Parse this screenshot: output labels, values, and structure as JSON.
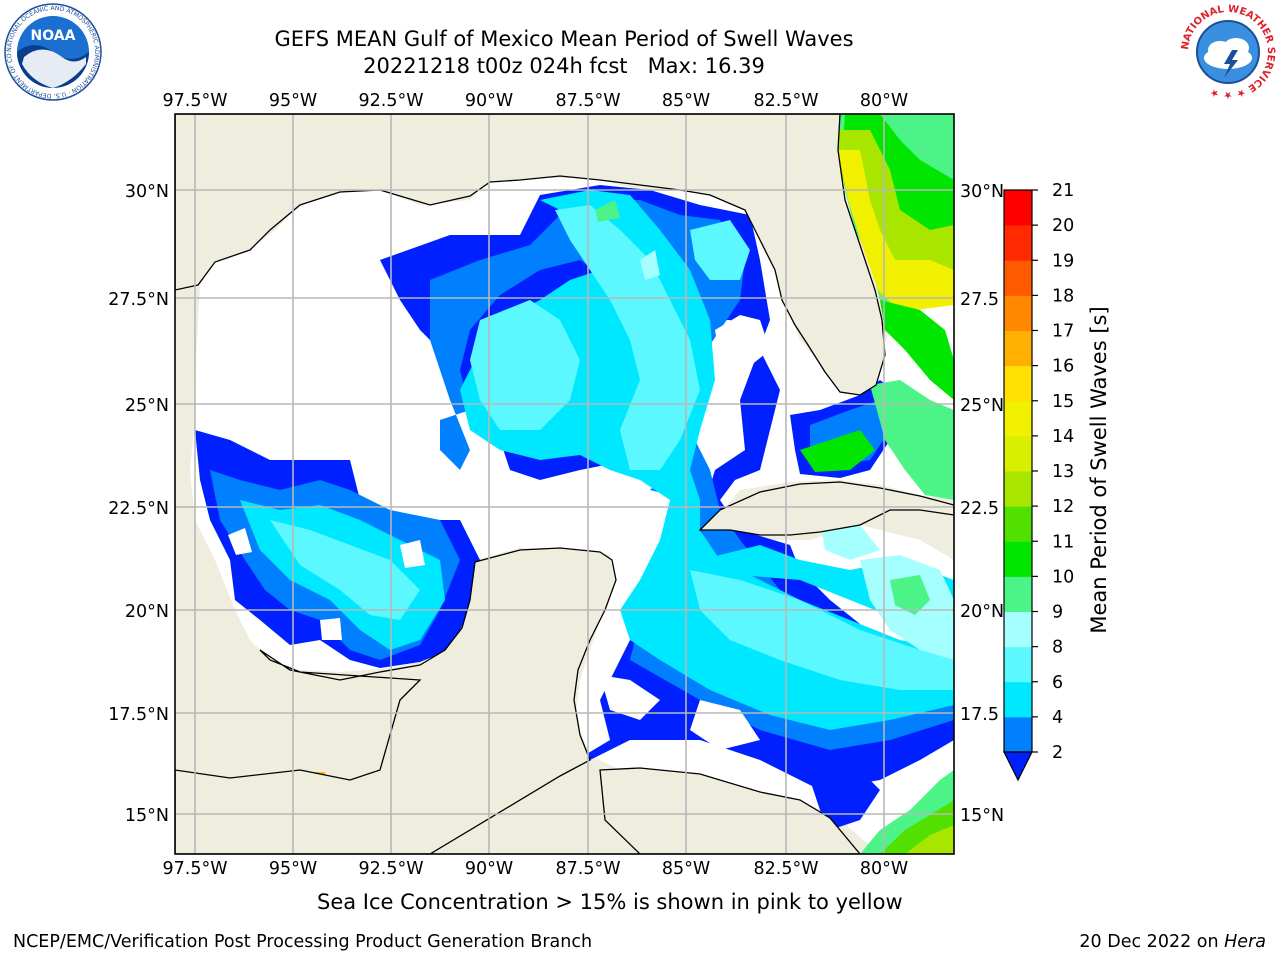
{
  "title": {
    "line1": "GEFS MEAN Gulf of Mexico Mean Period of Swell Waves",
    "line2": "20221218 t00z 024h fcst   Max: 16.39"
  },
  "map": {
    "lon_labels": [
      "97.5°W",
      "95°W",
      "92.5°W",
      "90°W",
      "87.5°W",
      "85°W",
      "82.5°W",
      "80°W"
    ],
    "lat_labels_left": [
      "30°N",
      "27.5°N",
      "25°N",
      "22.5°N",
      "20°N",
      "17.5°N",
      "15°N"
    ],
    "lat_labels_right": [
      "30°N",
      "27.5",
      "25°N",
      "22.5",
      "20°N",
      "17.5",
      "15°N"
    ],
    "colors": {
      "land": "#efedde",
      "grid": "#b8b8b8",
      "coast": "#000000"
    }
  },
  "colorbar": {
    "label": "Mean Period of Swell Waves [s]",
    "ticks": [
      "2",
      "4",
      "6",
      "8",
      "9",
      "10",
      "11",
      "12",
      "13",
      "14",
      "15",
      "16",
      "17",
      "18",
      "19",
      "20",
      "21"
    ],
    "colors": [
      "#0020ff",
      "#0080ff",
      "#00e8ff",
      "#5cf8ff",
      "#a6ffff",
      "#4cf488",
      "#00e600",
      "#52e000",
      "#a8e600",
      "#d8f000",
      "#f0f000",
      "#ffe000",
      "#ffb000",
      "#ff8800",
      "#ff5a00",
      "#ff2a00",
      "#ff0000"
    ]
  },
  "caption": "Sea Ice Concentration > 15% is shown in pink to yellow",
  "footer": {
    "left": "NCEP/EMC/Verification Post Processing Product Generation Branch",
    "date": "20 Dec 2022 on ",
    "machine": "Hera"
  },
  "logos": {
    "noaa_text": "NOAA",
    "noaa_ring": "NATIONAL OCEANIC AND ATMOSPHERIC ADMINISTRATION · U.S. DEPARTMENT OF COMMERCE ·",
    "nws_ring": "NATIONAL WEATHER SERVICE ★ ★ ★"
  }
}
